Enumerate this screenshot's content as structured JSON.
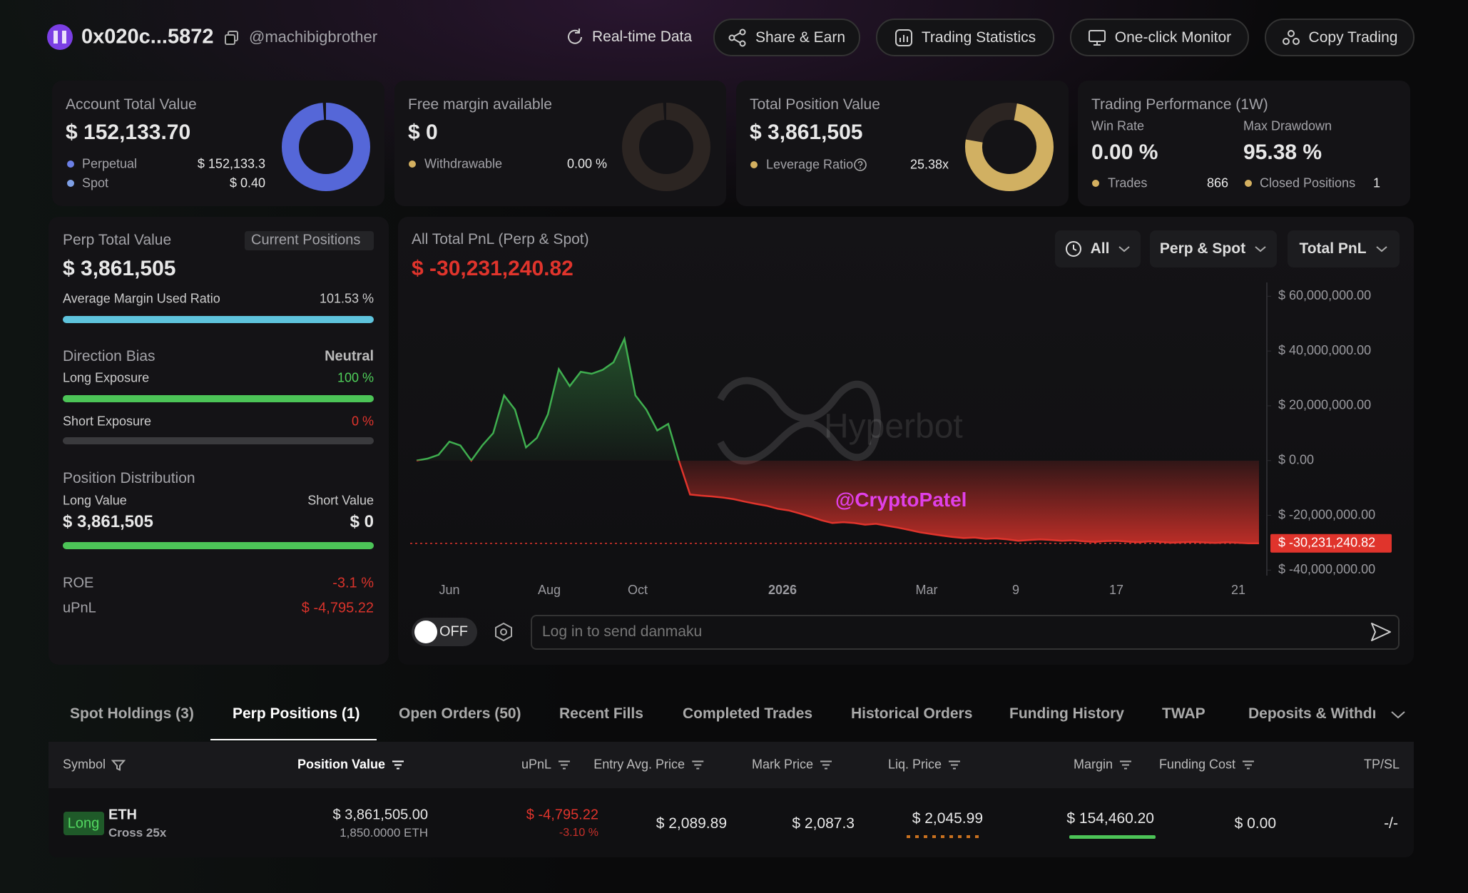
{
  "header": {
    "address": "0x020c...5872",
    "handle": "@machibigbrother",
    "nav": [
      "Real-time Data",
      "Share & Earn",
      "Trading Statistics",
      "One-click Monitor",
      "Copy Trading"
    ]
  },
  "cards": {
    "account": {
      "title": "Account Total Value",
      "value": "$ 152,133.70",
      "rows": [
        {
          "label": "Perpetual",
          "value": "$ 152,133.3"
        },
        {
          "label": "Spot",
          "value": "$ 0.40"
        }
      ]
    },
    "margin": {
      "title": "Free margin available",
      "value": "$ 0",
      "rows": [
        {
          "label": "Withdrawable",
          "value": "0.00 %"
        }
      ]
    },
    "position": {
      "title": "Total Position Value",
      "value": "$ 3,861,505",
      "rows": [
        {
          "label": "Leverage Ratio",
          "value": "25.38x"
        }
      ]
    },
    "performance": {
      "title": "Trading Performance (1W)",
      "stats": [
        {
          "label": "Win Rate",
          "value": "0.00 %"
        },
        {
          "label": "Max Drawdown",
          "value": "95.38 %"
        }
      ],
      "rows": [
        {
          "label": "Trades",
          "value": "866"
        },
        {
          "label": "Closed Positions",
          "value": "1"
        }
      ]
    }
  },
  "perp": {
    "title": "Perp Total Value",
    "tab": "Current Positions",
    "value": "$ 3,861,505",
    "margin_label": "Average Margin Used Ratio",
    "margin_value": "101.53 %",
    "bias_label": "Direction Bias",
    "bias_value": "Neutral",
    "long_label": "Long Exposure",
    "long_value": "100 %",
    "short_label": "Short Exposure",
    "short_value": "0 %",
    "dist_title": "Position Distribution",
    "long_value_label": "Long Value",
    "short_value_label": "Short Value",
    "long_amount": "$ 3,861,505",
    "short_amount": "$ 0",
    "roe_label": "ROE",
    "roe": "-3.1 %",
    "upnl_label": "uPnL",
    "upnl": "$ -4,795.22"
  },
  "pnl": {
    "title": "All Total PnL (Perp & Spot)",
    "value": "$ -30,231,240.82",
    "filters": [
      "All",
      "Perp & Spot",
      "Total PnL"
    ],
    "watermark": "Hyperbot",
    "overlay": "@CryptoPatel",
    "toggle": "OFF",
    "input_placeholder": "Log in to send danmaku"
  },
  "chart_data": {
    "type": "line",
    "x_labels": [
      "Jun",
      "Aug",
      "Oct",
      "2026",
      "Mar",
      "9",
      "17",
      "21"
    ],
    "values": [
      0,
      700000,
      2100000,
      6900000,
      5500000,
      0,
      5500000,
      10000000,
      23800000,
      18600000,
      4800000,
      8300000,
      16900000,
      33400000,
      27200000,
      32400000,
      31700000,
      33100000,
      35900000,
      44500000,
      23800000,
      18600000,
      11000000,
      13400000,
      -300000,
      -12400000,
      -12800000,
      -13100000,
      -13500000,
      -14100000,
      -15000000,
      -15800000,
      -16500000,
      -17600000,
      -18200000,
      -19300000,
      -20500000,
      -21800000,
      -22800000,
      -22500000,
      -22800000,
      -23400000,
      -23100000,
      -23800000,
      -24500000,
      -25300000,
      -26200000,
      -26800000,
      -27400000,
      -27900000,
      -28300000,
      -28100000,
      -28600000,
      -28400000,
      -28800000,
      -29300000,
      -29000000,
      -28800000,
      -29000000,
      -29300000,
      -29100000,
      -29500000,
      -29700000,
      -29400000,
      -29300000,
      -29600000,
      -29800000,
      -29500000,
      -29700000,
      -30000000,
      -29800000,
      -29700000,
      -29900000,
      -30100000,
      -29800000,
      -30000000,
      -30200000,
      -30231240.82
    ],
    "current_label": "$ -30,231,240.82",
    "ylim": [
      -42000000,
      64000000
    ],
    "yticks": [
      {
        "value": 60000000,
        "label": "$ 60,000,000.00"
      },
      {
        "value": 40000000,
        "label": "$ 40,000,000.00"
      },
      {
        "value": 20000000,
        "label": "$ 20,000,000.00"
      },
      {
        "value": 0,
        "label": "$ 0.00"
      },
      {
        "value": -20000000,
        "label": "$ -20,000,000.00"
      },
      {
        "value": -40000000,
        "label": "$ -40,000,000.00"
      }
    ],
    "up_color": "#3fae4f",
    "down_color": "#e0342c"
  },
  "tabs": [
    "Spot Holdings (3)",
    "Perp Positions (1)",
    "Open Orders (50)",
    "Recent Fills",
    "Completed Trades",
    "Historical Orders",
    "Funding History",
    "TWAP",
    "Deposits & Withdra"
  ],
  "table": {
    "headers": [
      "Symbol",
      "Position Value",
      "uPnL",
      "Entry Avg. Price",
      "Mark Price",
      "Liq. Price",
      "Margin",
      "Funding Cost",
      "TP/SL"
    ],
    "rows": [
      {
        "side": "Long",
        "symbol": "ETH",
        "mode": "Cross 25x",
        "position_value": "$ 3,861,505.00",
        "size": "1,850.0000 ETH",
        "upnl": "$ -4,795.22",
        "upnl_pct": "-3.10 %",
        "entry": "$ 2,089.89",
        "mark": "$ 2,087.3",
        "liq": "$ 2,045.99",
        "margin": "$ 154,460.20",
        "funding": "$ 0.00",
        "tpsl": "-/-"
      }
    ]
  }
}
